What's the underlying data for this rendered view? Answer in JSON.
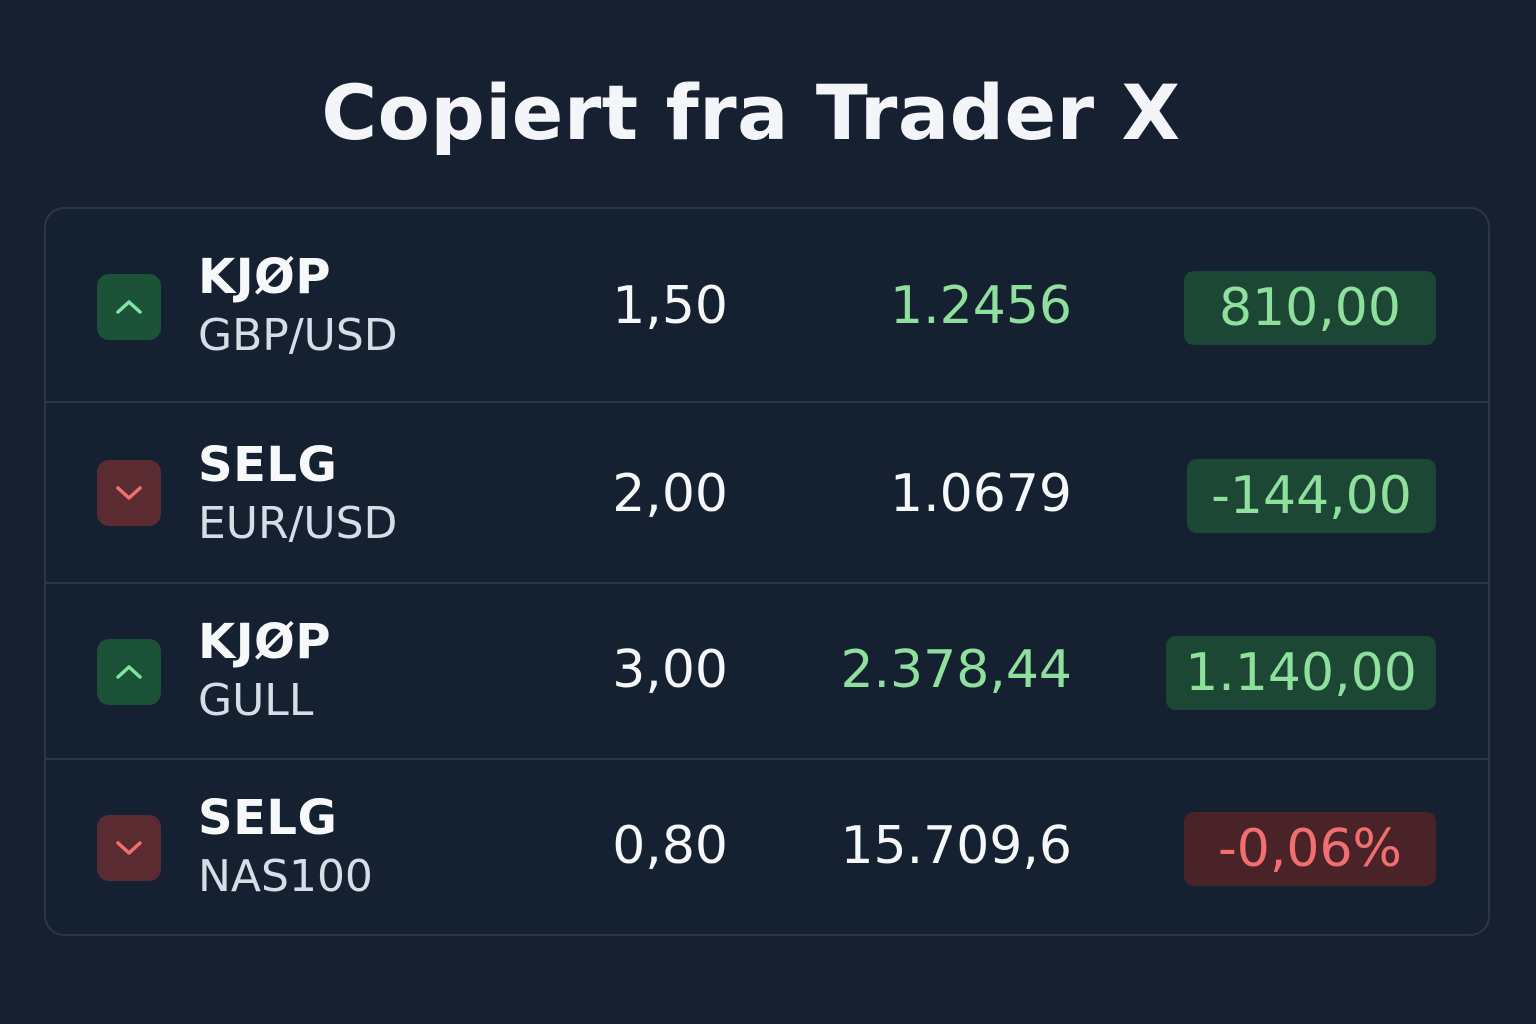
{
  "page": {
    "title": "Copiert fra Trader X"
  },
  "colors": {
    "background": "#172031",
    "buy_accent": "#8ee09c",
    "sell_accent": "#f16f6f",
    "positive_badge": "#1c4735",
    "negative_badge": "#4a2328"
  },
  "trades": [
    {
      "direction_icon": "chevron-up-icon",
      "action": "KJØP",
      "symbol": "GBP/USD",
      "lots": "1,50",
      "price": "1.2456",
      "pnl": "810,00"
    },
    {
      "direction_icon": "chevron-down-icon",
      "action": "SELG",
      "symbol": "EUR/USD",
      "lots": "2,00",
      "price": "1.0679",
      "pnl": "-144,00"
    },
    {
      "direction_icon": "chevron-up-icon",
      "action": "KJØP",
      "symbol": "GULL",
      "lots": "3,00",
      "price": "2.378,44",
      "pnl": "1.140,00"
    },
    {
      "direction_icon": "chevron-down-icon",
      "action": "SELG",
      "symbol": "NAS100",
      "lots": "0,80",
      "price": "15.709,6",
      "pnl": "-0,06%"
    }
  ]
}
